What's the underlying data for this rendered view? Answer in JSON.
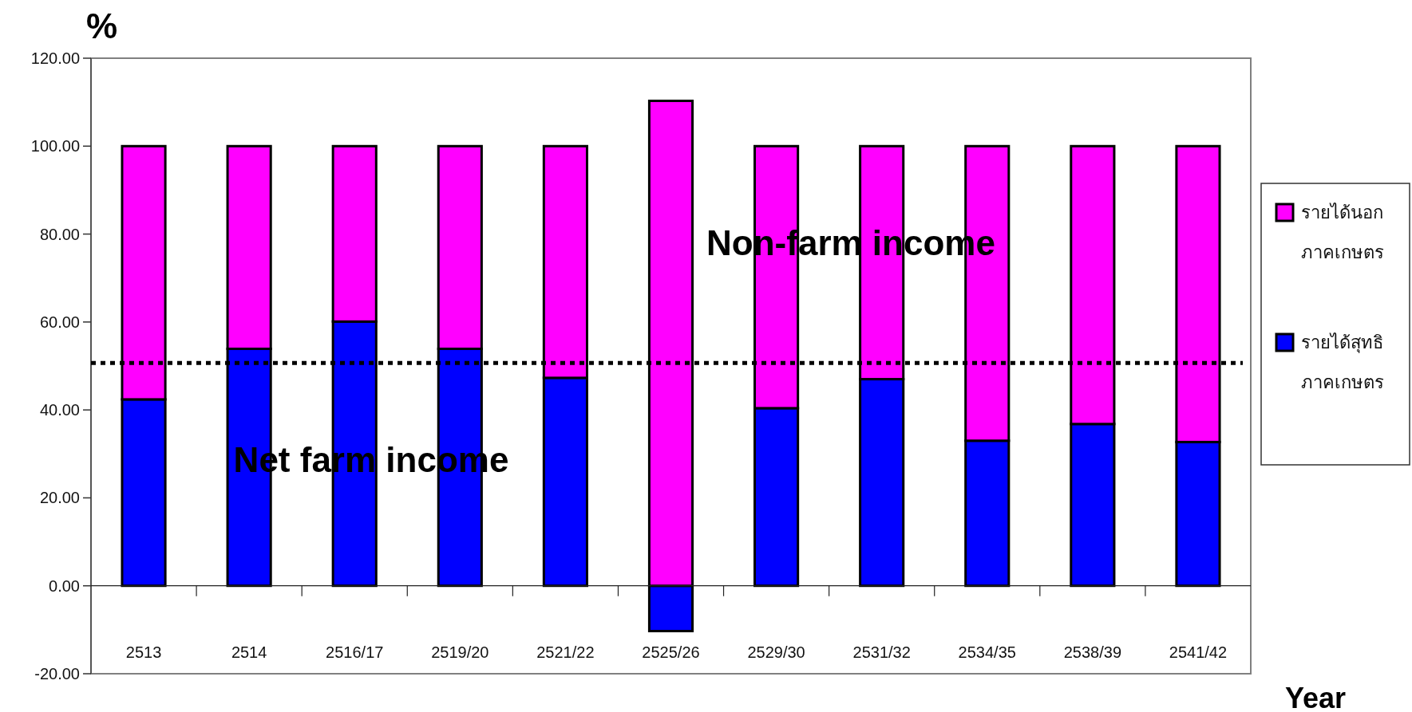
{
  "chart_data": {
    "type": "bar",
    "stacked": true,
    "ylabel": "%",
    "xlabel": "Year",
    "categories": [
      "2513",
      "2514",
      "2516/17",
      "2519/20",
      "2521/22",
      "2525/26",
      "2529/30",
      "2531/32",
      "2534/35",
      "2538/39",
      "2541/42"
    ],
    "series": [
      {
        "name": "รายได้สุทธิ ภาคเกษตร",
        "color": "#0000ff",
        "values": [
          42.4,
          53.9,
          60.1,
          53.9,
          47.3,
          -10.3,
          40.4,
          47.0,
          33.0,
          36.8,
          32.7
        ]
      },
      {
        "name": "รายได้นอก ภาคเกษตร",
        "color": "#ff00ff",
        "values": [
          57.6,
          46.1,
          39.9,
          46.1,
          52.7,
          110.3,
          59.6,
          53.0,
          67.0,
          63.2,
          67.3
        ]
      }
    ],
    "ylim": [
      -20,
      120
    ],
    "yticks": [
      {
        "value": -20,
        "label": "-20.00"
      },
      {
        "value": 0,
        "label": "0.00"
      },
      {
        "value": 20,
        "label": "20.00"
      },
      {
        "value": 40,
        "label": "40.00"
      },
      {
        "value": 60,
        "label": "60.00"
      },
      {
        "value": 80,
        "label": "80.00"
      },
      {
        "value": 100,
        "label": "100.00"
      },
      {
        "value": 120,
        "label": "120.00"
      }
    ],
    "ref_lines": [
      {
        "axis": "y",
        "value": 50.7,
        "color": "#000000",
        "line_style": "dotted"
      }
    ],
    "annotations": [
      "Net farm income",
      "Non-farm income"
    ],
    "legend": "right"
  }
}
